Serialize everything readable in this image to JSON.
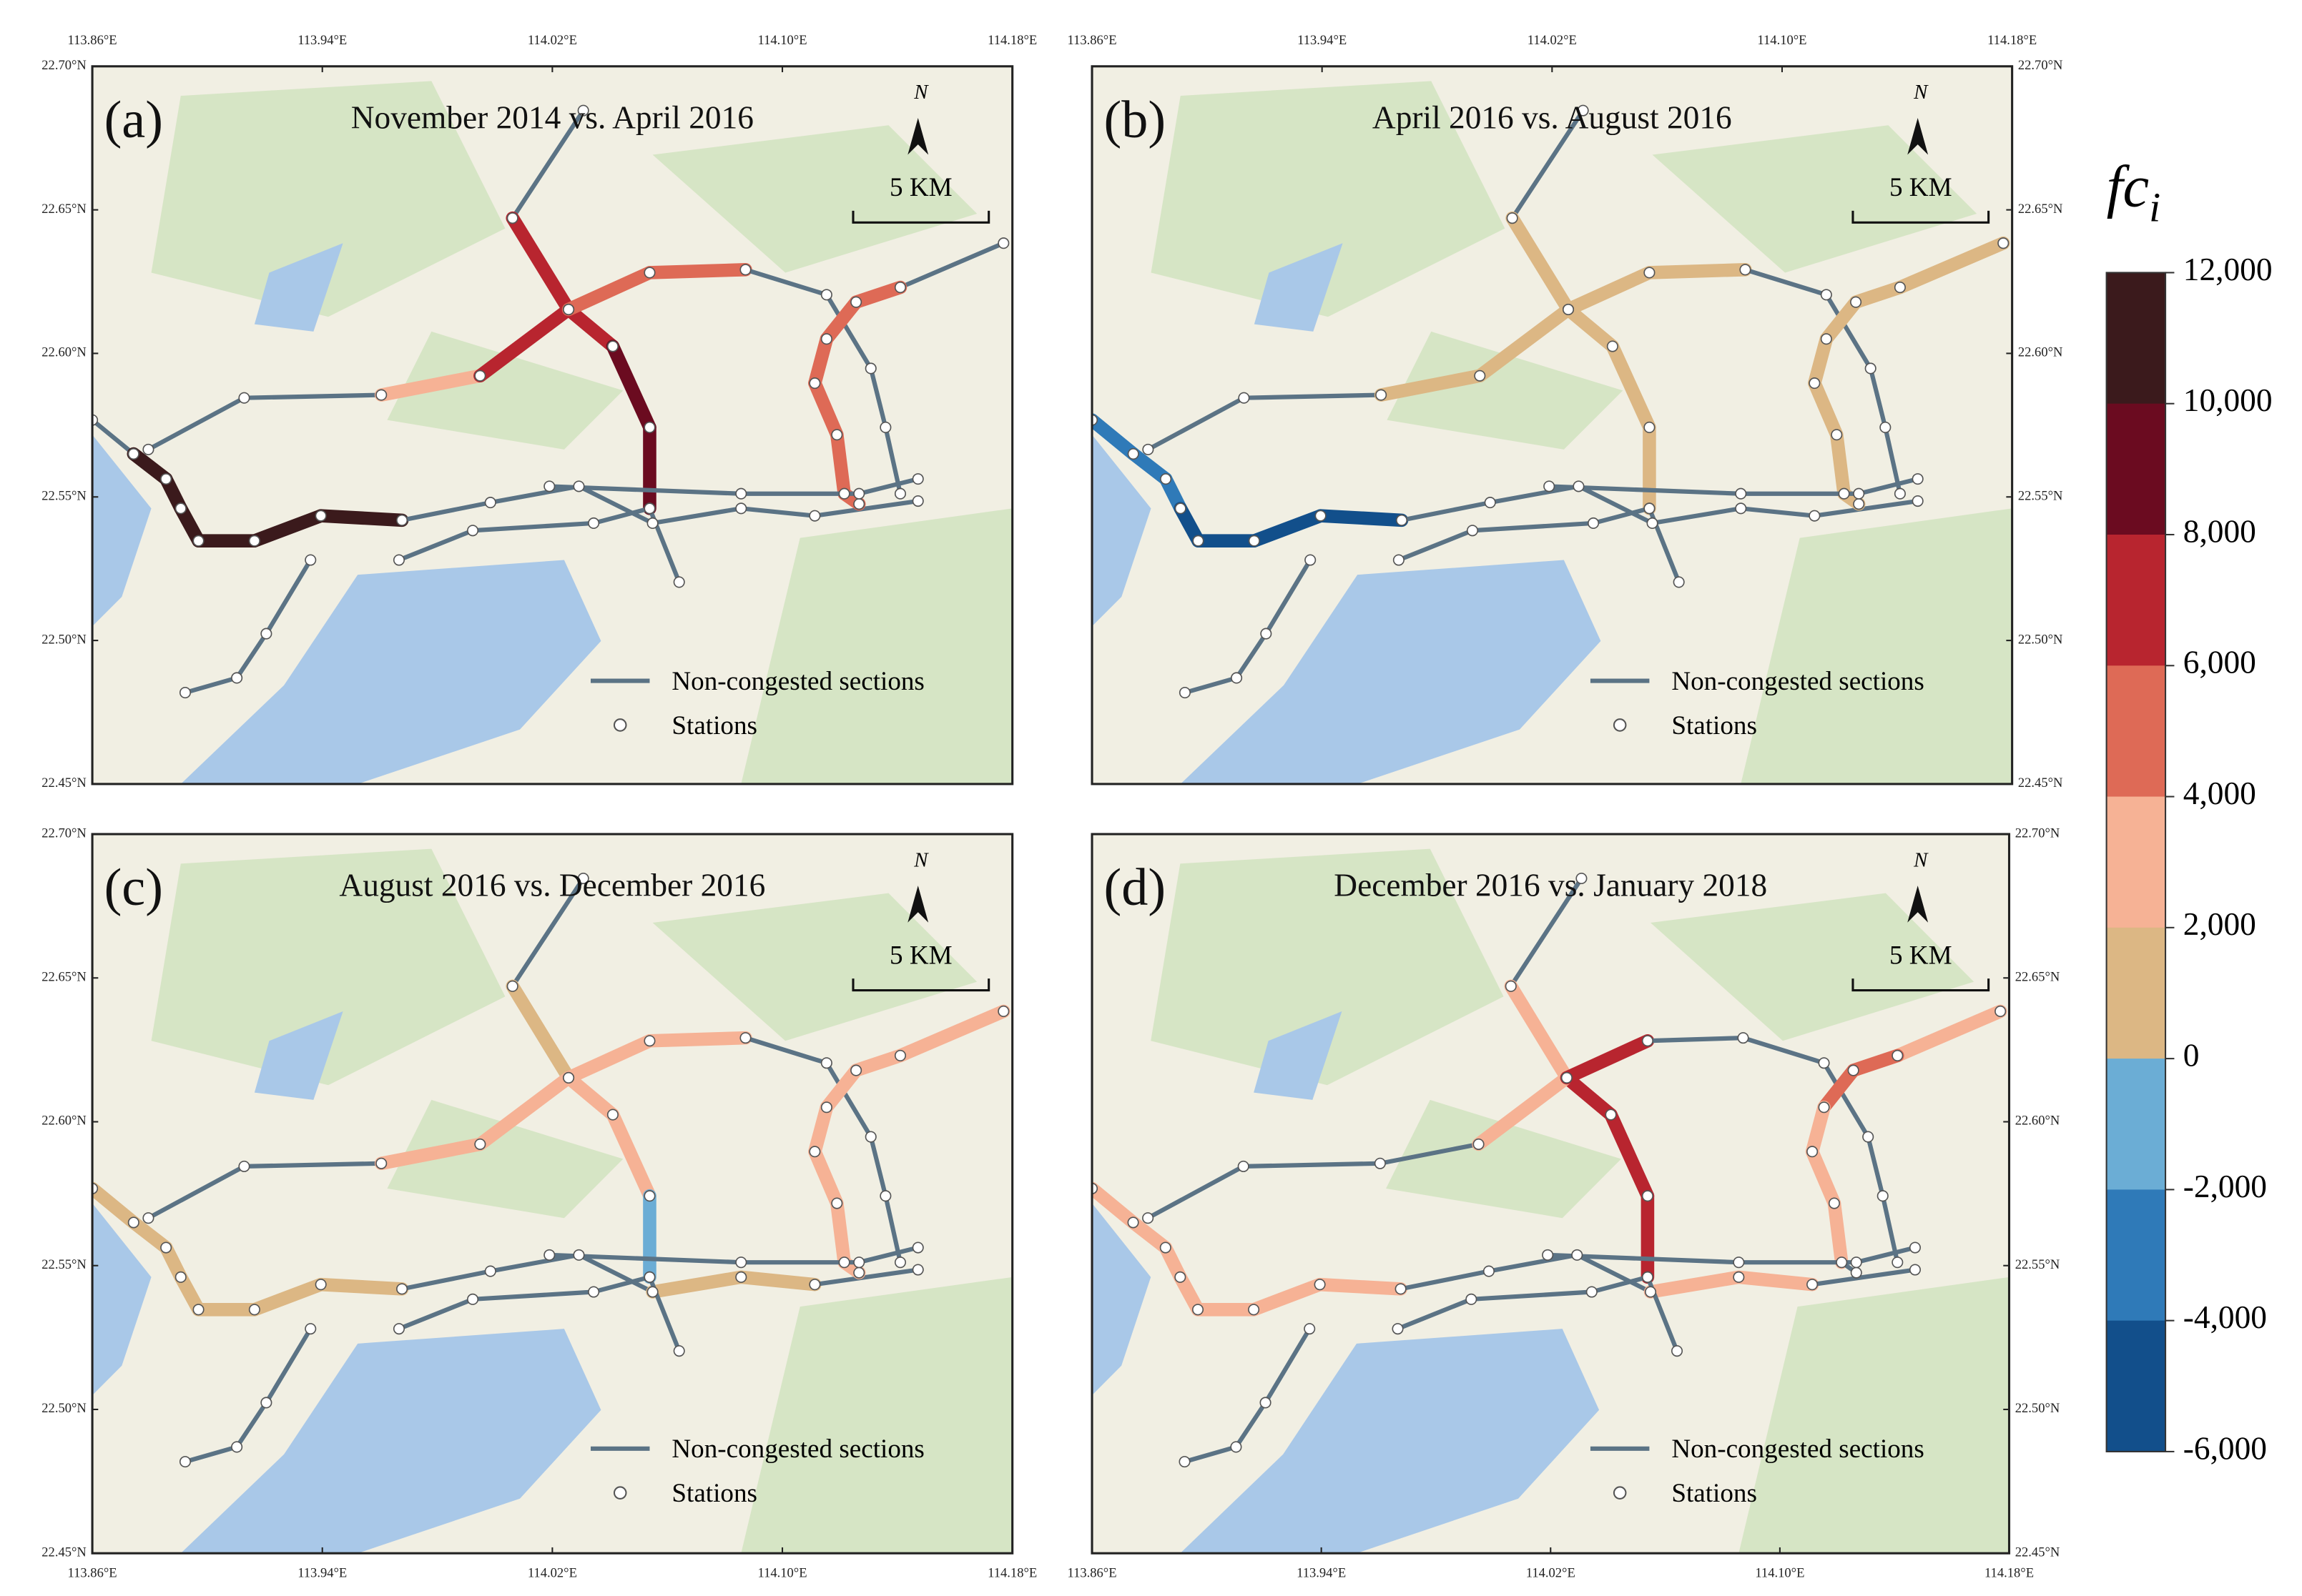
{
  "panels": [
    {
      "label": "(a)",
      "title": "November 2014 vs. April 2016",
      "legend_line": "Non-congested sections",
      "legend_stations": "Stations",
      "scale": "5 KM",
      "north": "N"
    },
    {
      "label": "(b)",
      "title": "April 2016 vs. August 2016",
      "legend_line": "Non-congested sections",
      "legend_stations": "Stations",
      "scale": "5 KM",
      "north": "N"
    },
    {
      "label": "(c)",
      "title": "August 2016 vs. December 2016",
      "legend_line": "Non-congested sections",
      "legend_stations": "Stations",
      "scale": "5 KM",
      "north": "N"
    },
    {
      "label": "(d)",
      "title": "December 2016 vs. January 2018",
      "legend_line": "Non-congested sections",
      "legend_stations": "Stations",
      "scale": "5 KM",
      "north": "N"
    }
  ],
  "lon_ticks": [
    {
      "value": 113.86,
      "label": "113.86°E"
    },
    {
      "value": 113.94,
      "label": "113.94°E"
    },
    {
      "value": 114.02,
      "label": "114.02°E"
    },
    {
      "value": 114.1,
      "label": "114.10°E"
    },
    {
      "value": 114.18,
      "label": "114.18°E"
    }
  ],
  "lat_ticks": [
    {
      "value": 22.7,
      "label": "22.70°N"
    },
    {
      "value": 22.65,
      "label": "22.65°N"
    },
    {
      "value": 22.6,
      "label": "22.60°N"
    },
    {
      "value": 22.55,
      "label": "22.55°N"
    },
    {
      "value": 22.5,
      "label": "22.50°N"
    },
    {
      "value": 22.45,
      "label": "22.45°N"
    }
  ],
  "lonlim": [
    113.86,
    114.18
  ],
  "latlim": [
    22.45,
    22.7
  ],
  "colorbar": {
    "title": "fc",
    "title_subscript": "i",
    "lim": [
      -6000,
      12000
    ],
    "ticks": [
      {
        "value": 12000,
        "label": "12,000"
      },
      {
        "value": 10000,
        "label": "10,000"
      },
      {
        "value": 8000,
        "label": "8,000"
      },
      {
        "value": 6000,
        "label": "6,000"
      },
      {
        "value": 4000,
        "label": "4,000"
      },
      {
        "value": 2000,
        "label": "2,000"
      },
      0,
      {
        "value": -2000,
        "label": "-2,000"
      },
      {
        "value": -4000,
        "label": "-4,000"
      },
      {
        "value": -6000,
        "label": "-6,000"
      }
    ],
    "colors": [
      "#3b1a1c",
      "#6b0b20",
      "#b8252f",
      "#de6a56",
      "#f6b295",
      "#dcb784",
      "#6badd5",
      "#2f7ab8",
      "#124f8b"
    ]
  },
  "line_color": "#5b7385"
}
